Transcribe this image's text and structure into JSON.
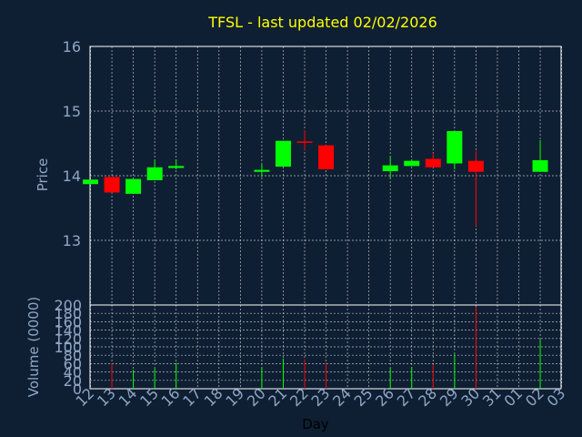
{
  "theme": {
    "background": "#0f1f33",
    "frame": "#ffffff",
    "grid": "#ffffff",
    "axis_text": "#8fa6c4",
    "title_color": "#ffff00",
    "up_color": "#00ff00",
    "down_color": "#ff0000"
  },
  "chart_data": {
    "type": "candlestick",
    "title": "TFSL - last updated 02/02/2026",
    "xlabel": "Day",
    "x_ticks": [
      "12",
      "13",
      "14",
      "15",
      "16",
      "17",
      "18",
      "19",
      "20",
      "21",
      "22",
      "23",
      "24",
      "25",
      "26",
      "27",
      "28",
      "29",
      "30",
      "31",
      "01",
      "02",
      "03"
    ],
    "price": {
      "ylabel": "Price",
      "ylim": [
        12.0,
        16.0
      ],
      "y_ticks": [
        13,
        14,
        15,
        16
      ],
      "candles": [
        {
          "x": 12,
          "open": 13.87,
          "high": 13.94,
          "low": 13.87,
          "close": 13.94
        },
        {
          "x": 13,
          "open": 13.98,
          "high": 13.98,
          "low": 13.74,
          "close": 13.74
        },
        {
          "x": 14,
          "open": 13.72,
          "high": 13.95,
          "low": 13.72,
          "close": 13.95
        },
        {
          "x": 15,
          "open": 13.93,
          "high": 14.24,
          "low": 13.93,
          "close": 14.13
        },
        {
          "x": 16,
          "open": 14.12,
          "high": 14.25,
          "low": 14.1,
          "close": 14.15
        },
        {
          "x": 20,
          "open": 14.06,
          "high": 14.18,
          "low": 13.98,
          "close": 14.09
        },
        {
          "x": 21,
          "open": 14.14,
          "high": 14.54,
          "low": 14.14,
          "close": 14.54
        },
        {
          "x": 22,
          "open": 14.53,
          "high": 14.7,
          "low": 14.4,
          "close": 14.51
        },
        {
          "x": 23,
          "open": 14.47,
          "high": 14.47,
          "low": 14.1,
          "close": 14.1
        },
        {
          "x": 26,
          "open": 14.07,
          "high": 14.3,
          "low": 13.95,
          "close": 14.16
        },
        {
          "x": 27,
          "open": 14.15,
          "high": 14.25,
          "low": 14.15,
          "close": 14.23
        },
        {
          "x": 28,
          "open": 14.26,
          "high": 14.35,
          "low": 14.13,
          "close": 14.13
        },
        {
          "x": 29,
          "open": 14.19,
          "high": 14.69,
          "low": 14.1,
          "close": 14.69
        },
        {
          "x": 30,
          "open": 14.23,
          "high": 14.38,
          "low": 13.22,
          "close": 14.06
        },
        {
          "x": 2,
          "open": 14.06,
          "high": 14.55,
          "low": 14.06,
          "close": 14.24
        }
      ]
    },
    "volume": {
      "ylabel": "Volume (0000)",
      "ylim": [
        0,
        200
      ],
      "y_ticks": [
        0,
        20,
        40,
        60,
        80,
        100,
        120,
        140,
        160,
        180,
        200
      ],
      "bars": [
        {
          "x": 13,
          "value": 60,
          "direction": "down"
        },
        {
          "x": 14,
          "value": 45,
          "direction": "up"
        },
        {
          "x": 15,
          "value": 48,
          "direction": "up"
        },
        {
          "x": 16,
          "value": 62,
          "direction": "up"
        },
        {
          "x": 20,
          "value": 52,
          "direction": "up"
        },
        {
          "x": 21,
          "value": 72,
          "direction": "up"
        },
        {
          "x": 22,
          "value": 70,
          "direction": "down"
        },
        {
          "x": 23,
          "value": 62,
          "direction": "down"
        },
        {
          "x": 26,
          "value": 50,
          "direction": "up"
        },
        {
          "x": 27,
          "value": 52,
          "direction": "up"
        },
        {
          "x": 28,
          "value": 58,
          "direction": "down"
        },
        {
          "x": 29,
          "value": 82,
          "direction": "up"
        },
        {
          "x": 30,
          "value": 196,
          "direction": "down"
        },
        {
          "x": 2,
          "value": 118,
          "direction": "up"
        }
      ]
    },
    "grid": true
  }
}
